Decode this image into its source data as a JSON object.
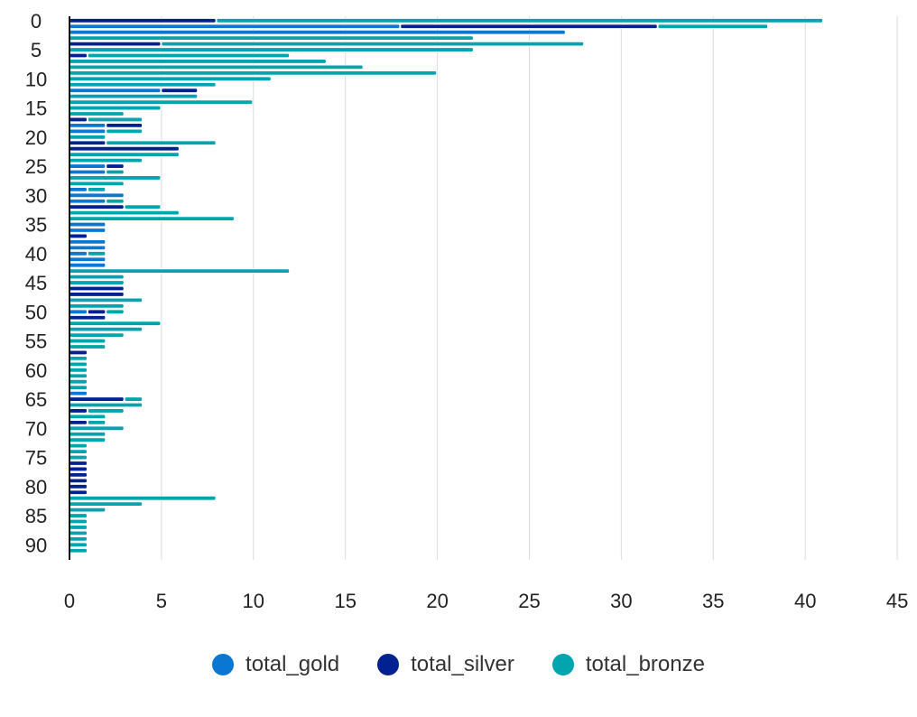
{
  "chart_data": {
    "type": "bar",
    "orientation": "horizontal",
    "stacked": true,
    "title": "",
    "xlabel": "",
    "ylabel": "",
    "xlim": [
      0,
      45
    ],
    "x_ticks": [
      "0",
      "5",
      "10",
      "15",
      "20",
      "25",
      "30",
      "35",
      "40",
      "45"
    ],
    "y_tick_labels": [
      "0",
      "5",
      "10",
      "15",
      "20",
      "25",
      "30",
      "35",
      "40",
      "45",
      "50",
      "55",
      "60",
      "65",
      "70",
      "75",
      "80",
      "85",
      "90"
    ],
    "y_tick_step": 5,
    "grid": "vertical",
    "legend_position": "bottom",
    "categories": [
      0,
      1,
      2,
      3,
      4,
      5,
      6,
      7,
      8,
      9,
      10,
      11,
      12,
      13,
      14,
      15,
      16,
      17,
      18,
      19,
      20,
      21,
      22,
      23,
      24,
      25,
      26,
      27,
      28,
      29,
      30,
      31,
      32,
      33,
      34,
      35,
      36,
      37,
      38,
      39,
      40,
      41,
      42,
      43,
      44,
      45,
      46,
      47,
      48,
      49,
      50,
      51,
      52,
      53,
      54,
      55,
      56,
      57,
      58,
      59,
      60,
      61,
      62,
      63,
      64,
      65,
      66,
      67,
      68,
      69,
      70,
      71,
      72,
      73,
      74,
      75,
      76,
      77,
      78,
      79,
      80,
      81,
      82,
      83,
      84,
      85,
      86,
      87,
      88,
      89,
      90,
      91
    ],
    "series": [
      {
        "name": "total_gold",
        "color": "#0a78d2",
        "values": [
          0,
          18,
          27,
          0,
          0,
          0,
          0,
          0,
          0,
          0,
          0,
          0,
          5,
          0,
          0,
          0,
          0,
          0,
          2,
          2,
          0,
          0,
          0,
          0,
          0,
          2,
          2,
          0,
          0,
          1,
          3,
          2,
          0,
          0,
          0,
          2,
          2,
          0,
          2,
          2,
          1,
          2,
          2,
          0,
          0,
          0,
          0,
          0,
          0,
          0,
          1,
          0,
          0,
          0,
          0,
          0,
          0,
          0,
          0,
          0,
          0,
          0,
          0,
          0,
          1,
          0,
          0,
          0,
          0,
          0,
          0,
          0,
          0,
          0,
          0,
          0,
          0,
          0,
          0,
          0,
          0,
          0,
          0,
          0,
          0,
          0,
          0,
          0,
          0,
          0,
          0,
          0
        ]
      },
      {
        "name": "total_silver",
        "color": "#00218f",
        "values": [
          8,
          14,
          0,
          0,
          5,
          0,
          1,
          0,
          0,
          0,
          0,
          0,
          2,
          0,
          0,
          0,
          0,
          1,
          2,
          0,
          0,
          2,
          6,
          0,
          0,
          1,
          0,
          0,
          0,
          0,
          0,
          0,
          3,
          0,
          0,
          0,
          0,
          1,
          0,
          0,
          0,
          0,
          0,
          0,
          0,
          0,
          3,
          3,
          0,
          0,
          1,
          2,
          0,
          0,
          0,
          0,
          0,
          1,
          0,
          0,
          0,
          0,
          0,
          0,
          0,
          3,
          0,
          1,
          0,
          1,
          0,
          0,
          0,
          0,
          0,
          0,
          1,
          1,
          1,
          1,
          1,
          1,
          0,
          0,
          0,
          0,
          0,
          0,
          0,
          0,
          0,
          0
        ]
      },
      {
        "name": "total_bronze",
        "color": "#02a4ae",
        "values": [
          33,
          6,
          0,
          22,
          23,
          22,
          11,
          14,
          16,
          20,
          11,
          8,
          0,
          7,
          10,
          5,
          3,
          3,
          0,
          2,
          2,
          6,
          0,
          6,
          4,
          0,
          1,
          5,
          3,
          1,
          0,
          1,
          2,
          6,
          9,
          0,
          0,
          0,
          0,
          0,
          1,
          0,
          0,
          12,
          3,
          3,
          0,
          0,
          4,
          3,
          1,
          0,
          5,
          4,
          3,
          2,
          2,
          0,
          1,
          1,
          1,
          1,
          1,
          1,
          0,
          1,
          4,
          2,
          2,
          1,
          3,
          2,
          2,
          1,
          1,
          1,
          0,
          0,
          0,
          0,
          0,
          0,
          8,
          4,
          2,
          1,
          1,
          1,
          1,
          1,
          1,
          1
        ]
      }
    ]
  }
}
